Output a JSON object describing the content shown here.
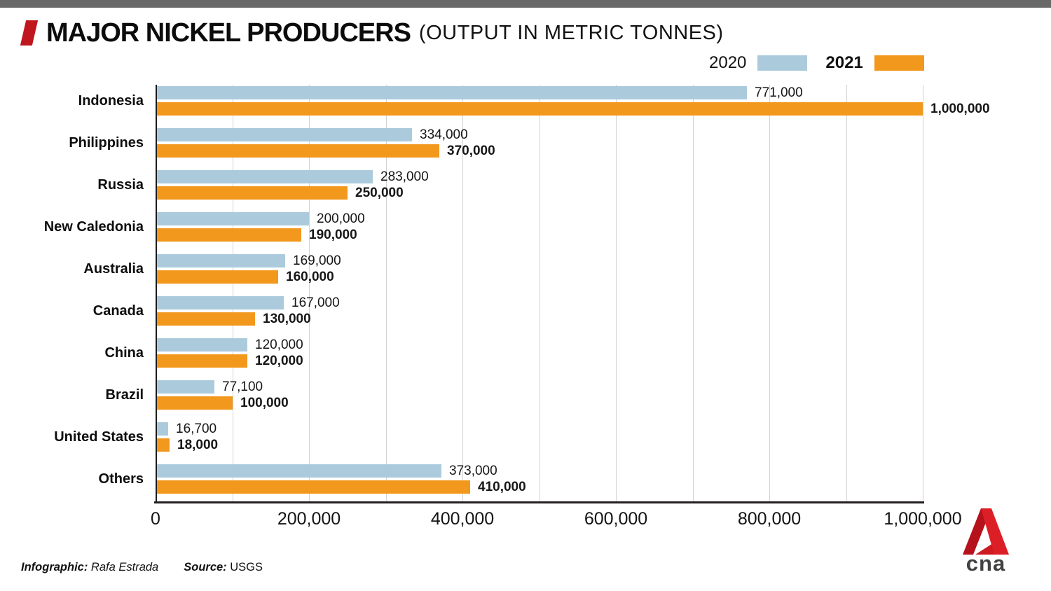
{
  "page": {
    "top_bar_color": "#696969",
    "background": "#FFFFFF"
  },
  "header": {
    "title": "MAJOR NICKEL PRODUCERS",
    "subtitle": "(OUTPUT IN METRIC TONNES)",
    "accent_color": "#C0161D"
  },
  "legend": {
    "items": [
      {
        "label": "2020",
        "color": "#ABCBDD",
        "bold": false
      },
      {
        "label": "2021",
        "color": "#F2981D",
        "bold": true
      }
    ],
    "position": "top-right"
  },
  "chart_data": {
    "type": "bar",
    "orientation": "horizontal",
    "title": "MAJOR NICKEL PRODUCERS (OUTPUT IN METRIC TONNES)",
    "categories": [
      "Indonesia",
      "Philippines",
      "Russia",
      "New Caledonia",
      "Australia",
      "Canada",
      "China",
      "Brazil",
      "United States",
      "Others"
    ],
    "series": [
      {
        "name": "2020",
        "color": "#ABCBDD",
        "bold_labels": false,
        "values": [
          771000,
          334000,
          283000,
          200000,
          169000,
          167000,
          120000,
          77100,
          16700,
          373000
        ],
        "labels": [
          "771,000",
          "334,000",
          "283,000",
          "200,000",
          "169,000",
          "167,000",
          "120,000",
          "77,100",
          "16,700",
          "373,000"
        ]
      },
      {
        "name": "2021",
        "color": "#F2981D",
        "bold_labels": true,
        "values": [
          1000000,
          370000,
          250000,
          190000,
          160000,
          130000,
          120000,
          100000,
          18000,
          410000
        ],
        "labels": [
          "1,000,000",
          "370,000",
          "250,000",
          "190,000",
          "160,000",
          "130,000",
          "120,000",
          "100,000",
          "18,000",
          "410,000"
        ]
      }
    ],
    "xlim": [
      0,
      1000000
    ],
    "gridline_step": 100000,
    "grid": true,
    "legend_position": "top-right",
    "x_ticks": [
      {
        "value": 0,
        "label": "0"
      },
      {
        "value": 200000,
        "label": "200,000"
      },
      {
        "value": 400000,
        "label": "400,000"
      },
      {
        "value": 600000,
        "label": "600,000"
      },
      {
        "value": 800000,
        "label": "800,000"
      },
      {
        "value": 1000000,
        "label": "1,000,000"
      }
    ]
  },
  "footer": {
    "infographic_label": "Infographic:",
    "infographic_value": "Rafa Estrada",
    "source_label": "Source:",
    "source_value": "USGS"
  },
  "logo": {
    "text": "cna"
  }
}
